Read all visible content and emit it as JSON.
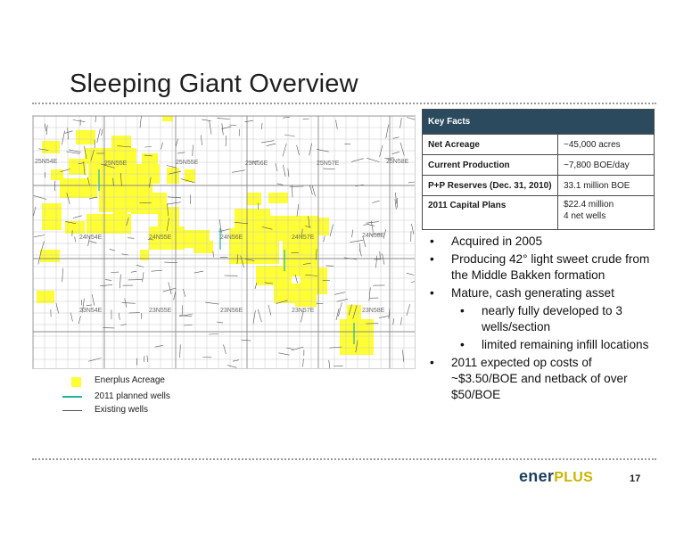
{
  "slide": {
    "title": "Sleeping Giant Overview",
    "page_number": "17"
  },
  "map": {
    "acreage_color": "#ffff33",
    "planned_well_color": "#1fb5a3",
    "existing_well_color": "#555555",
    "township_labels": [
      {
        "text": "25N54E"
      },
      {
        "text": "25N55E"
      },
      {
        "text": "25N55E"
      },
      {
        "text": "25N56E"
      },
      {
        "text": "25N57E"
      },
      {
        "text": "25N58E"
      },
      {
        "text": "24N54E"
      },
      {
        "text": "24N55E"
      },
      {
        "text": "24N56E"
      },
      {
        "text": "24N57E"
      },
      {
        "text": "24N58E"
      },
      {
        "text": "23N54E"
      },
      {
        "text": "23N55E"
      },
      {
        "text": "23N56E"
      },
      {
        "text": "23N57E"
      },
      {
        "text": "23N58E"
      }
    ]
  },
  "legend": {
    "acreage": "Enerplus Acreage",
    "planned": "2011 planned wells",
    "existing": "Existing wells"
  },
  "key_facts": {
    "header": "Key Facts",
    "rows": [
      {
        "label": "Net Acreage",
        "value": "~45,000 acres"
      },
      {
        "label": "Current Production",
        "value": "~7,800 BOE/day"
      },
      {
        "label": "P+P Reserves (Dec. 31, 2010)",
        "value": "33.1 million BOE"
      },
      {
        "label": "2011 Capital Plans",
        "value": "$22.4 million",
        "value2": "4 net wells"
      }
    ]
  },
  "bullets": {
    "b1": "Acquired in 2005",
    "b2": "Producing 42° light sweet crude from the Middle Bakken formation",
    "b3": "Mature, cash generating asset",
    "b3a": "nearly fully developed to 3 wells/section",
    "b3b": "limited remaining infill locations",
    "b4": "2011 expected op costs of ~$3.50/BOE and netback of over $50/BOE",
    "marker": "•"
  },
  "logo": {
    "part1": "ener",
    "part2": "PLUS",
    "primary_color": "#1b3f5c",
    "accent_color": "#c9b400"
  }
}
